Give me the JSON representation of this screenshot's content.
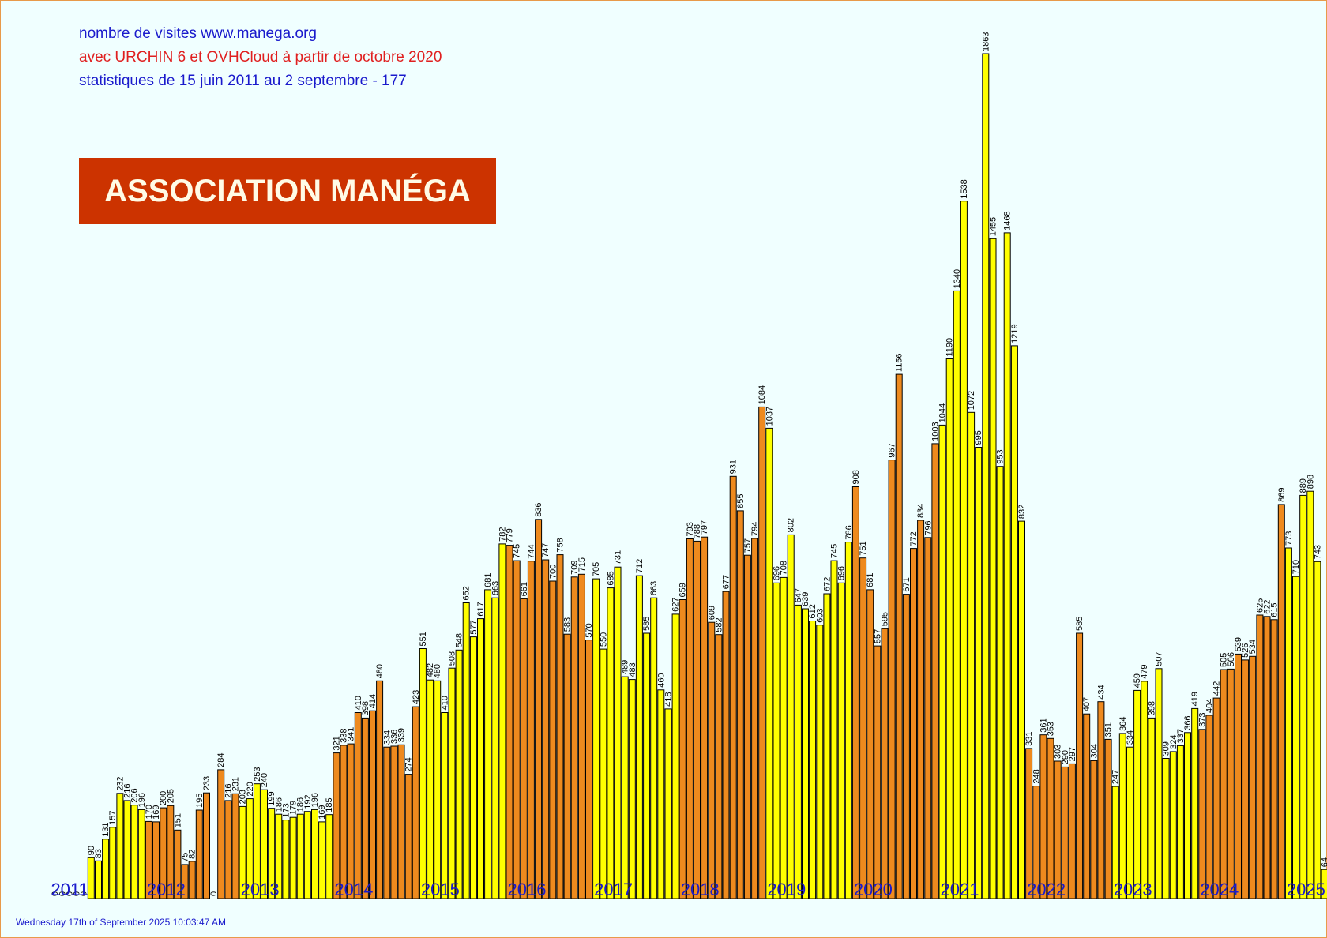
{
  "header": {
    "line1": "nombre de visites www.manega.org",
    "line2": "avec URCHIN 6 et OVHCloud à partir de octobre 2020",
    "line3": "statistiques de 15 juin 2011 au 2 septembre - 177",
    "line1_color": "#1a1acc",
    "line2_color": "#e02020",
    "line3_color": "#1a1acc"
  },
  "banner": {
    "text": "ASSOCIATION MANÉGA",
    "bg": "#cc3300",
    "fg": "#fffbe6"
  },
  "footer": {
    "timestamp": "Wednesday 17th of September 2025 10:03:47 AM",
    "color": "#1a1acc"
  },
  "chart_data": {
    "type": "bar",
    "ylim": [
      0,
      1863
    ],
    "colors": {
      "odd_year": "#ffff00",
      "even_year": "#ee8a1e",
      "outline": "#000000",
      "year_label": "#1a1acc"
    },
    "years": [
      {
        "label": "2011",
        "start": 5,
        "values": [
          0,
          0,
          0,
          0,
          0,
          90,
          83,
          131,
          157,
          232,
          216,
          206,
          196
        ]
      },
      {
        "label": "2012",
        "values": [
          170,
          169,
          200,
          205,
          151,
          75,
          82,
          195,
          233,
          0,
          284,
          216,
          231
        ]
      },
      {
        "label": "2013",
        "values": [
          203,
          220,
          253,
          240,
          199,
          186,
          173,
          179,
          186,
          192,
          196,
          169,
          185
        ]
      },
      {
        "label": "2014",
        "values": [
          321,
          338,
          341,
          410,
          398,
          414,
          480,
          334,
          336,
          339,
          274,
          423
        ]
      },
      {
        "label": "2015",
        "values": [
          551,
          482,
          480,
          410,
          508,
          548,
          652,
          577,
          617,
          681,
          663,
          782
        ]
      },
      {
        "label": "2016",
        "values": [
          779,
          745,
          661,
          744,
          836,
          747,
          700,
          758,
          583,
          709,
          715,
          570
        ]
      },
      {
        "label": "2017",
        "values": [
          705,
          550,
          685,
          731,
          489,
          483,
          712,
          585,
          663,
          460,
          418,
          627
        ]
      },
      {
        "label": "2018",
        "values": [
          659,
          793,
          788,
          797,
          609,
          582,
          677,
          931,
          855,
          757,
          794,
          1084
        ]
      },
      {
        "label": "2019",
        "values": [
          1037,
          696,
          708,
          802,
          647,
          639,
          612,
          603,
          672,
          745,
          696,
          786
        ]
      },
      {
        "label": "2020",
        "values": [
          908,
          751,
          681,
          557,
          595,
          967,
          1156,
          671,
          772,
          834,
          796,
          1003
        ]
      },
      {
        "label": "2021",
        "values": [
          1044,
          1190,
          1340,
          1538,
          1072,
          995,
          1863,
          1455,
          953,
          1468,
          1219,
          832
        ]
      },
      {
        "label": "2022",
        "values": [
          331,
          248,
          361,
          353,
          303,
          290,
          297,
          585,
          407,
          304,
          434,
          351
        ]
      },
      {
        "label": "2023",
        "values": [
          247,
          364,
          334,
          459,
          479,
          398,
          507,
          309,
          324,
          337,
          366,
          419
        ]
      },
      {
        "label": "2024",
        "values": [
          373,
          404,
          442,
          505,
          506,
          539,
          526,
          534,
          625,
          622,
          615,
          869
        ]
      },
      {
        "label": "2025",
        "values": [
          773,
          710,
          889,
          898,
          743,
          64,
          0,
          0,
          0,
          0
        ]
      }
    ]
  }
}
